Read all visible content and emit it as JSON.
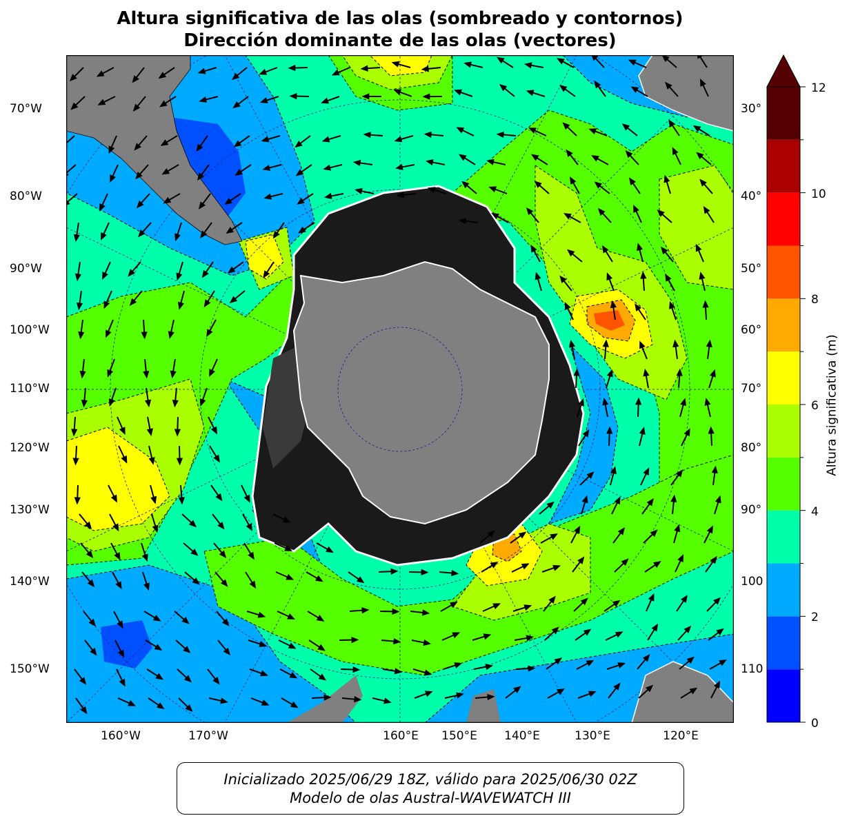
{
  "title": {
    "line1": "Altura significativa de las olas (sombreado y contornos)",
    "line2": "Dirección dominante de las olas (vectores)"
  },
  "map": {
    "projection": "south-polar stereographic",
    "left_axis_labels": [
      "70°W",
      "80°W",
      "90°W",
      "100°W",
      "110°W",
      "120°W",
      "130°W",
      "140°W",
      "150°W"
    ],
    "right_axis_labels": [
      "30°",
      "40°",
      "50°",
      "60°",
      "70°",
      "80°",
      "90°",
      "100",
      "110"
    ],
    "bottom_axis_labels": [
      "160°W",
      "170°W",
      "160°E",
      "150°E",
      "140°E",
      "130°E",
      "120°E"
    ],
    "land_color": "#808080",
    "sea_ice_color": "#1a1a1a",
    "gridline_color": "#1a1a8c"
  },
  "colorbar": {
    "label": "Altura significativa (m)",
    "ticks": [
      "0",
      "2",
      "4",
      "6",
      "8",
      "10",
      "12"
    ],
    "range": [
      0,
      12
    ],
    "extend": "max",
    "levels": [
      {
        "min": 0,
        "max": 1,
        "color": "#0000ff"
      },
      {
        "min": 1,
        "max": 2,
        "color": "#0050ff"
      },
      {
        "min": 2,
        "max": 3,
        "color": "#00aaff"
      },
      {
        "min": 3,
        "max": 4,
        "color": "#00ffaa"
      },
      {
        "min": 4,
        "max": 5,
        "color": "#55ff00"
      },
      {
        "min": 5,
        "max": 6,
        "color": "#aaff00"
      },
      {
        "min": 6,
        "max": 7,
        "color": "#ffff00"
      },
      {
        "min": 7,
        "max": 8,
        "color": "#ffaa00"
      },
      {
        "min": 8,
        "max": 9,
        "color": "#ff5500"
      },
      {
        "min": 9,
        "max": 10,
        "color": "#ff0000"
      },
      {
        "min": 10,
        "max": 11,
        "color": "#aa0000"
      },
      {
        "min": 11,
        "max": 12,
        "color": "#550000"
      }
    ]
  },
  "footer": {
    "line1": "Inicializado 2025/06/29 18Z, válido para 2025/06/30 02Z",
    "line2": "Modelo de olas Austral-WAVEWATCH III"
  }
}
